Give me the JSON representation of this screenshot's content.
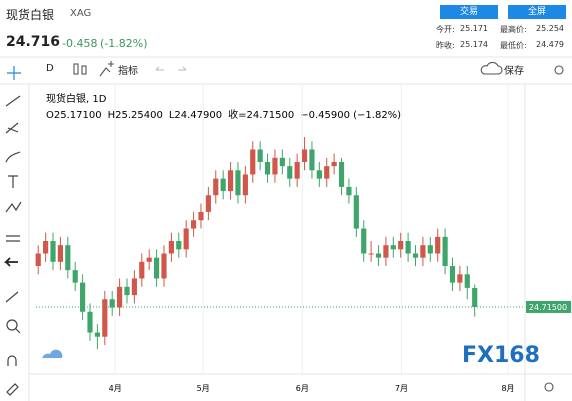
{
  "header": {
    "title": "现货白银",
    "symbol": "XAG",
    "price": "24.716",
    "change": "-0.458",
    "change_pct": "(-1.82%)",
    "buttons": [
      "交易",
      "全屏"
    ],
    "stats": [
      {
        "label": "今开:",
        "value": "25.171"
      },
      {
        "label": "最高价:",
        "value": "25.254"
      },
      {
        "label": "昨收:",
        "value": "25.174"
      },
      {
        "label": "最低价:",
        "value": "24.479"
      }
    ]
  },
  "toolbar": {
    "interval": "D",
    "indicators": "指标",
    "save": "保存"
  },
  "watermark": "FX168",
  "chart_data": {
    "type": "candlestick",
    "legend_title": "现货白银, 1D",
    "ohlc_legend": [
      "O25.17100",
      "H25.25400",
      "L24.47900",
      "收=24.71500",
      "−0.45900 (−1.82%)"
    ],
    "up_color": "#d0574a",
    "down_color": "#3fa66b",
    "xlim": [
      -0.3,
      65.8
    ],
    "xticks": [
      {
        "value": 10.4,
        "label": "4月"
      },
      {
        "value": 22.3,
        "label": "5月"
      },
      {
        "value": 35.7,
        "label": "6月"
      },
      {
        "value": 49.1,
        "label": "7月"
      },
      {
        "value": 63.5,
        "label": "8月"
      }
    ],
    "ylim": [
      23.2,
      30.05
    ],
    "last_price": {
      "value": 24.715,
      "label": "24.71500"
    },
    "open": [
      25.7,
      26.0,
      26.3,
      25.8,
      26.2,
      25.6,
      25.3,
      24.6,
      24.1,
      24.0,
      24.9,
      24.7,
      25.2,
      25.0,
      25.4,
      25.8,
      25.9,
      25.4,
      26.0,
      26.3,
      26.1,
      26.6,
      26.8,
      27.0,
      27.4,
      27.8,
      27.5,
      28.0,
      27.4,
      27.9,
      28.5,
      28.2,
      27.9,
      28.3,
      28.1,
      27.8,
      28.2,
      28.5,
      28.0,
      27.8,
      28.1,
      28.2,
      27.6,
      27.4,
      26.6,
      26.0,
      26.0,
      25.9,
      26.2,
      26.1,
      26.3,
      26.0,
      25.9,
      26.2,
      26.0,
      26.4,
      25.7,
      25.3,
      25.5,
      25.171
    ],
    "high": [
      26.2,
      26.5,
      26.5,
      26.4,
      26.4,
      25.8,
      25.5,
      24.8,
      24.3,
      25.1,
      25.1,
      25.4,
      25.4,
      25.6,
      26.0,
      26.1,
      26.1,
      26.2,
      26.5,
      26.5,
      26.8,
      27.0,
      27.2,
      27.6,
      28.0,
      28.0,
      28.2,
      28.2,
      28.1,
      28.7,
      28.7,
      28.4,
      28.5,
      28.5,
      28.3,
      28.4,
      28.8,
      28.7,
      28.2,
      28.3,
      28.4,
      28.3,
      27.8,
      27.6,
      26.8,
      26.3,
      26.2,
      26.4,
      26.4,
      26.5,
      26.5,
      26.2,
      26.4,
      26.4,
      26.6,
      26.6,
      25.9,
      25.7,
      25.7,
      25.254
    ],
    "low": [
      25.5,
      25.8,
      25.6,
      25.6,
      25.4,
      25.1,
      24.4,
      23.9,
      23.7,
      23.8,
      24.5,
      24.5,
      24.8,
      24.8,
      25.2,
      25.6,
      25.2,
      25.2,
      25.8,
      25.9,
      25.9,
      26.4,
      26.6,
      26.8,
      27.2,
      27.3,
      27.3,
      27.2,
      27.2,
      27.7,
      28.0,
      27.7,
      27.7,
      27.9,
      27.6,
      27.6,
      28.0,
      27.8,
      27.6,
      27.6,
      27.9,
      27.4,
      27.2,
      26.4,
      25.8,
      25.8,
      25.7,
      25.7,
      25.9,
      25.9,
      25.8,
      25.7,
      25.7,
      25.8,
      25.8,
      25.5,
      25.1,
      25.1,
      24.9,
      24.479
    ],
    "close": [
      26.0,
      26.3,
      25.8,
      26.2,
      25.6,
      25.3,
      24.6,
      24.1,
      24.0,
      24.9,
      24.7,
      25.2,
      25.0,
      25.4,
      25.8,
      25.9,
      25.4,
      26.0,
      26.3,
      26.1,
      26.6,
      26.8,
      27.0,
      27.4,
      27.8,
      27.5,
      28.0,
      27.4,
      27.9,
      28.5,
      28.2,
      27.9,
      28.3,
      28.1,
      27.8,
      28.2,
      28.5,
      28.0,
      27.8,
      28.1,
      28.2,
      27.6,
      27.4,
      26.6,
      26.0,
      26.0,
      25.9,
      26.2,
      26.1,
      26.3,
      26.0,
      25.9,
      26.2,
      26.0,
      26.4,
      25.7,
      25.3,
      25.5,
      25.174,
      24.715
    ]
  }
}
